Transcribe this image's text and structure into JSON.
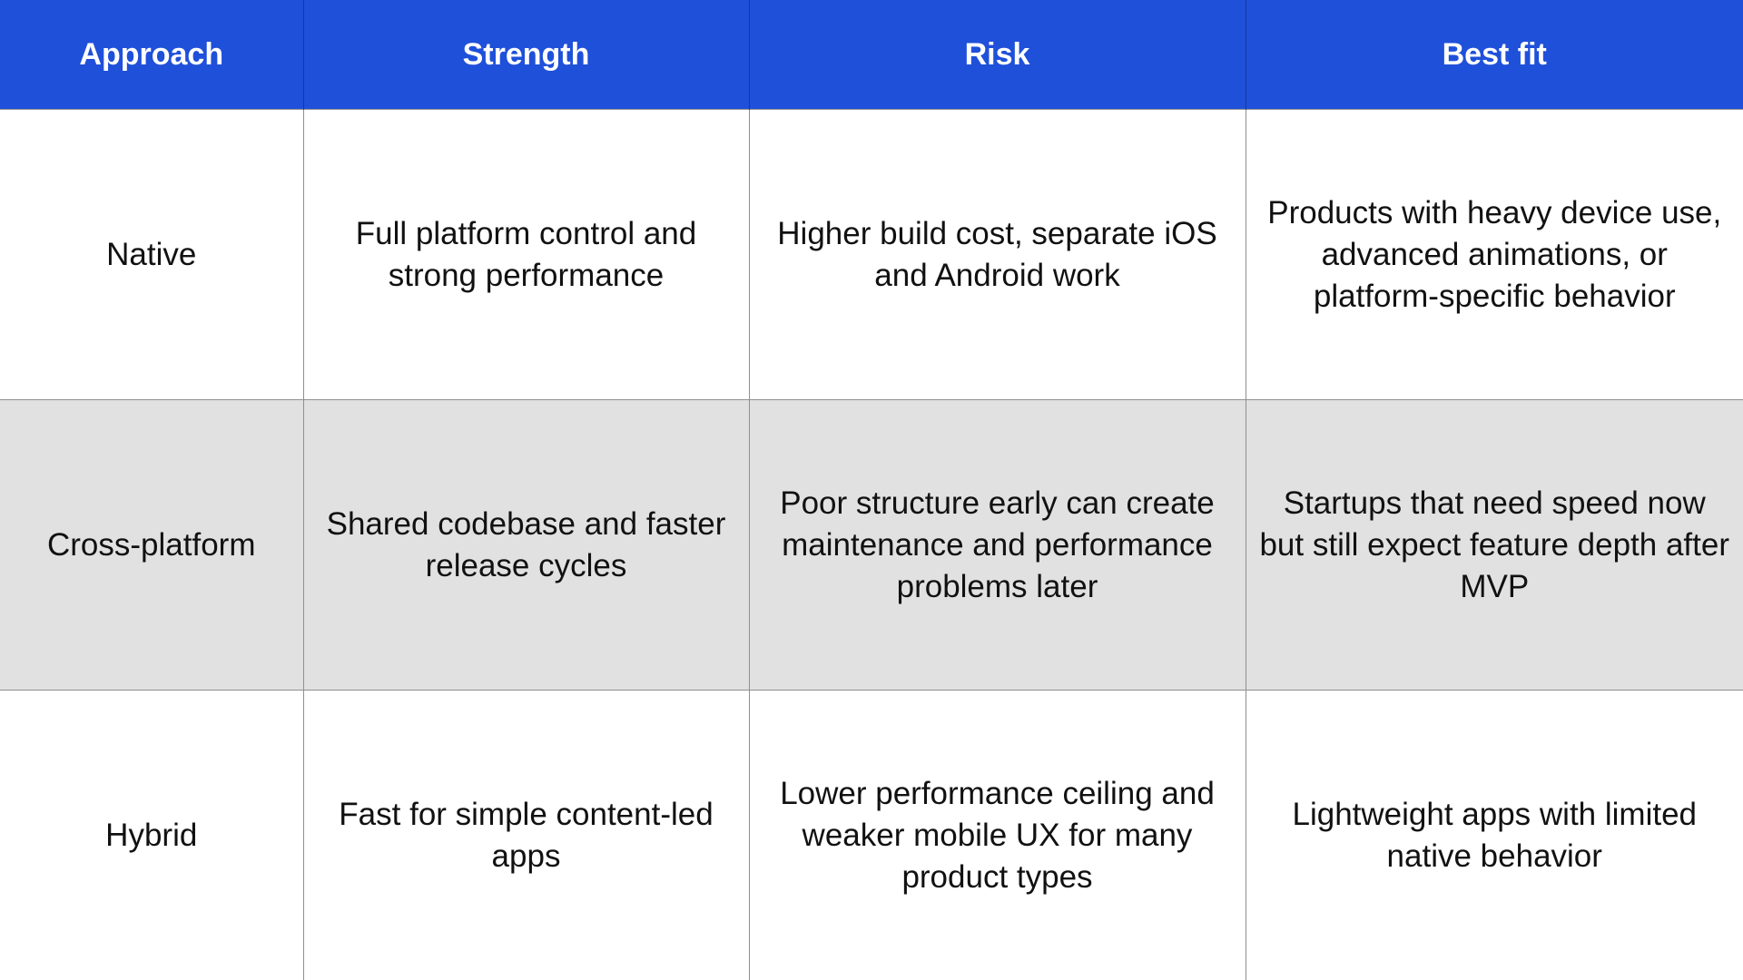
{
  "table": {
    "headers": [
      "Approach",
      "Strength",
      "Risk",
      "Best fit"
    ],
    "rows": [
      {
        "approach": "Native",
        "strength": "Full platform control and strong performance",
        "risk": "Higher build cost, separate iOS and Android work",
        "best_fit": "Products with heavy device use, advanced animations, or platform-specific behavior"
      },
      {
        "approach": "Cross-platform",
        "strength": "Shared codebase and faster release cycles",
        "risk": "Poor structure early can create maintenance and performance problems later",
        "best_fit": "Startups that need speed now but still expect feature depth after MVP"
      },
      {
        "approach": "Hybrid",
        "strength": "Fast for simple content-led apps",
        "risk": "Lower performance ceiling and weaker mobile UX for many product types",
        "best_fit": "Lightweight apps with limited native behavior"
      }
    ]
  },
  "colors": {
    "header_background": "#1f50da",
    "header_text": "#ffffff",
    "shaded_row": "#e1e1e1",
    "grid_line": "#8f8f8f"
  }
}
